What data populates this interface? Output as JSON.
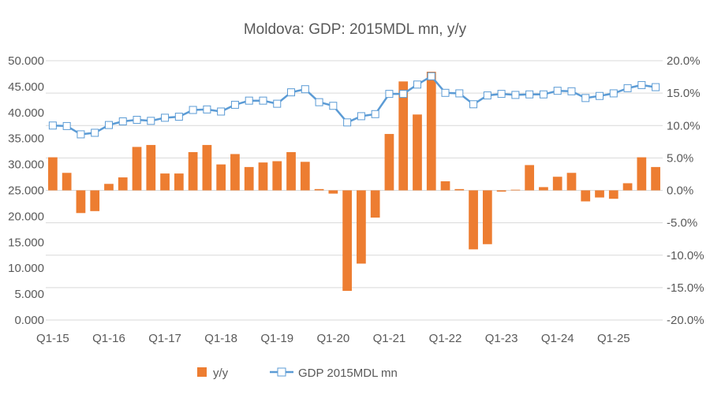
{
  "chart_data": {
    "type": "bar+line",
    "title": "Moldova: GDP: 2015MDL mn, y/y",
    "x_ticks": [
      "Q1-15",
      "Q1-16",
      "Q1-17",
      "Q1-18",
      "Q1-19",
      "Q1-20",
      "Q1-21",
      "Q1-22",
      "Q1-23",
      "Q1-24",
      "Q1-25"
    ],
    "left_axis": {
      "ticks": [
        "0.000",
        "5.000",
        "10.000",
        "15.000",
        "20.000",
        "25.000",
        "30.000",
        "35.000",
        "40.000",
        "45.000",
        "50.000"
      ],
      "ylim": [
        0,
        50
      ]
    },
    "right_axis": {
      "ticks": [
        "-20.0%",
        "-15.0%",
        "-10.0%",
        "-5.0%",
        "0.0%",
        "5.0%",
        "10.0%",
        "15.0%",
        "20.0%"
      ],
      "ylim": [
        -20,
        20
      ]
    },
    "grid": true,
    "legend_position": "bottom",
    "series": [
      {
        "name": "y/y",
        "type": "bar",
        "axis": "right",
        "color": "#ED7D31",
        "values": [
          5.1,
          2.7,
          -3.5,
          -3.2,
          1.0,
          2.0,
          6.7,
          7.0,
          2.6,
          2.6,
          5.9,
          7.0,
          4.0,
          5.6,
          3.6,
          4.3,
          4.5,
          5.9,
          4.4,
          0.2,
          -0.5,
          -15.5,
          -11.3,
          -4.2,
          8.7,
          16.8,
          11.7,
          18.3,
          1.4,
          0.2,
          -9.1,
          -8.3,
          -0.2,
          0.1,
          3.9,
          0.5,
          2.1,
          2.7,
          -1.7,
          -1.1,
          -1.3,
          1.1,
          5.1,
          3.6
        ]
      },
      {
        "name": "GDP 2015MDL mn",
        "type": "line",
        "axis": "left",
        "color": "#5B9BD5",
        "values": [
          37.5,
          37.4,
          35.8,
          36.1,
          37.6,
          38.3,
          38.6,
          38.4,
          39.0,
          39.2,
          40.5,
          40.6,
          40.2,
          41.5,
          42.3,
          42.3,
          41.7,
          43.9,
          44.5,
          42.0,
          41.3,
          38.1,
          39.3,
          39.7,
          43.6,
          43.6,
          45.4,
          47.0,
          43.8,
          43.7,
          41.6,
          43.3,
          43.6,
          43.4,
          43.5,
          43.5,
          44.2,
          44.1,
          42.8,
          43.2,
          43.7,
          44.7,
          45.3,
          44.9
        ]
      }
    ]
  }
}
